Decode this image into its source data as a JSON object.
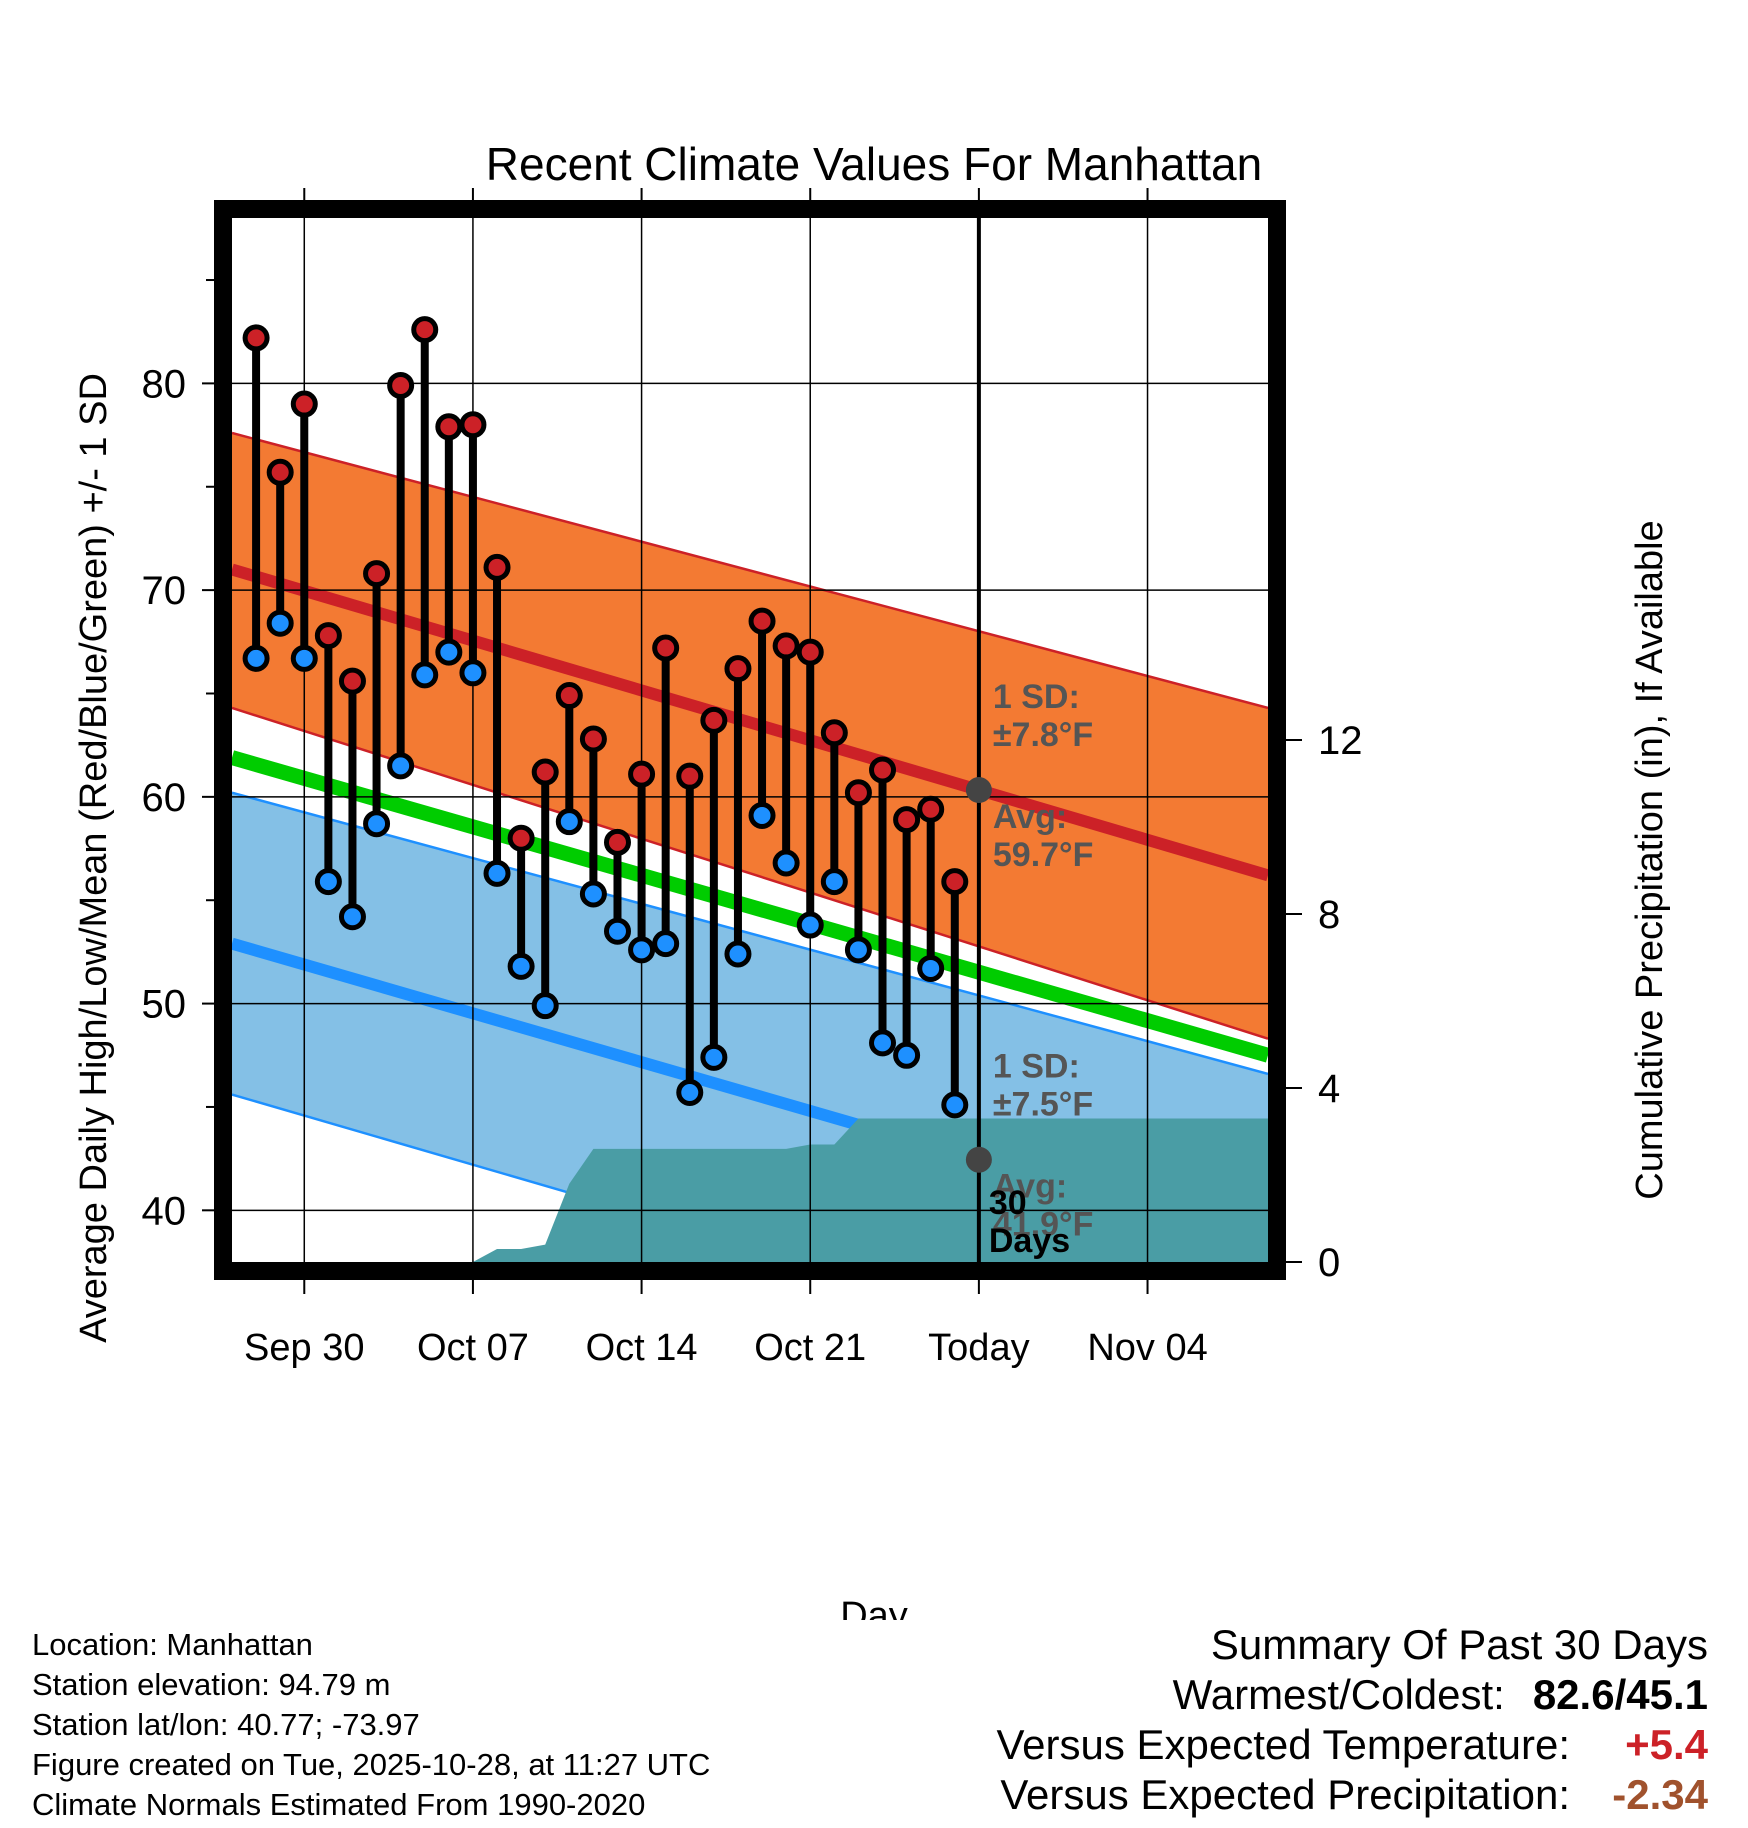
{
  "chart_data": {
    "type": "line",
    "title": "Recent Climate Values For Manhattan",
    "xlabel": "Day",
    "ylabel_left": "Average Daily High/Low/Mean (Red/Blue/Green) +/- 1 SD",
    "ylabel_right": "Cumulative Precipitation (in), If Available",
    "ylim": [
      37.5,
      88
    ],
    "ylim_right": [
      0,
      24
    ],
    "yticks_left": [
      40,
      50,
      60,
      70,
      80
    ],
    "yticks_right": [
      0,
      4,
      8,
      12
    ],
    "x_start_day": 0,
    "x_end_day": 43,
    "x_ticks": [
      {
        "day": 3,
        "label": "Sep 30"
      },
      {
        "day": 10,
        "label": "Oct 07"
      },
      {
        "day": 17,
        "label": "Oct 14"
      },
      {
        "day": 24,
        "label": "Oct 21"
      },
      {
        "day": 31,
        "label": "Today"
      },
      {
        "day": 38,
        "label": "Nov 04"
      }
    ],
    "today_day": 31,
    "normals": {
      "high_avg": {
        "start": 71.0,
        "end": 56.2
      },
      "high_sd_upper": {
        "start": 77.6,
        "end": 64.3
      },
      "high_sd_lower": {
        "start": 64.3,
        "end": 48.3
      },
      "low_avg": {
        "start": 52.9,
        "end": 38.4
      },
      "low_sd_upper": {
        "start": 60.2,
        "end": 46.6
      },
      "low_sd_lower": {
        "start": 45.6,
        "end": 31.0
      },
      "mean": {
        "start": 61.9,
        "end": 47.5
      }
    },
    "observed": {
      "days": [
        1,
        2,
        3,
        4,
        5,
        6,
        7,
        8,
        9,
        10,
        11,
        12,
        13,
        14,
        15,
        16,
        17,
        18,
        19,
        20,
        21,
        22,
        23,
        24,
        25,
        26,
        27,
        28,
        29,
        30
      ],
      "highs": [
        82.2,
        75.7,
        79.0,
        67.8,
        65.6,
        70.8,
        79.9,
        82.6,
        77.9,
        78.0,
        71.1,
        58.0,
        61.2,
        64.9,
        62.8,
        57.8,
        61.1,
        67.2,
        61.0,
        63.7,
        66.2,
        68.5,
        67.3,
        67.0,
        63.1,
        60.2,
        61.3,
        58.9,
        59.4,
        55.9
      ],
      "lows": [
        66.7,
        68.4,
        66.7,
        55.9,
        54.2,
        58.7,
        61.5,
        65.9,
        67.0,
        66.0,
        56.3,
        51.8,
        49.9,
        58.8,
        55.3,
        53.5,
        52.6,
        52.9,
        45.7,
        47.4,
        52.4,
        59.1,
        56.8,
        53.8,
        55.9,
        52.6,
        48.1,
        47.5,
        51.7,
        45.1
      ]
    },
    "precipitation": {
      "days": [
        0,
        10,
        11,
        12,
        13,
        14,
        15,
        16,
        17,
        18,
        19,
        20,
        21,
        22,
        23,
        24,
        25,
        26,
        27,
        28,
        29,
        30,
        31,
        43
      ],
      "cumulative": [
        0,
        0,
        0.3,
        0.3,
        0.4,
        1.8,
        2.6,
        2.6,
        2.6,
        2.6,
        2.6,
        2.6,
        2.6,
        2.6,
        2.6,
        2.7,
        2.7,
        3.3,
        3.3,
        3.3,
        3.3,
        3.3,
        3.3,
        3.3
      ]
    },
    "annotations": {
      "high_sd_line1": "1 SD:",
      "high_sd_line2": "±7.8°F",
      "high_avg_line1": "Avg:",
      "high_avg_line2": "59.7°F",
      "low_sd_line1": "1 SD:",
      "low_sd_line2": "±7.5°F",
      "low_avg_line1": "Avg:",
      "low_avg_line2": "41.9°F",
      "window_line1": "30",
      "window_line2": "Days"
    }
  },
  "colors": {
    "high_band": "#f37a33",
    "high_line": "#cc2127",
    "low_band": "#84c0e6",
    "low_line": "#1e90ff",
    "mean_line": "#00cc00",
    "precip_fill": "#4a9da5",
    "high_dot": "#cc2127",
    "low_dot": "#1e90ff",
    "annotation_text": "#555555",
    "warm_value": "#cc2127",
    "precip_value": "#a0522d"
  },
  "footer": {
    "location": "Location: Manhattan",
    "elevation": "Station elevation: 94.79 m",
    "latlon": "Station lat/lon: 40.77; -73.97",
    "created": "Figure created on Tue, 2025-10-28, at 11:27 UTC",
    "normals_period": "Climate Normals Estimated From 1990-2020"
  },
  "summary": {
    "title": "Summary Of Past 30 Days",
    "warm_cold_label": "Warmest/Coldest:",
    "warm_cold_value": "82.6/45.1",
    "temp_label": "Versus Expected Temperature:",
    "temp_value": "+5.4",
    "precip_label": "Versus Expected Precipitation:",
    "precip_value": "-2.34"
  }
}
